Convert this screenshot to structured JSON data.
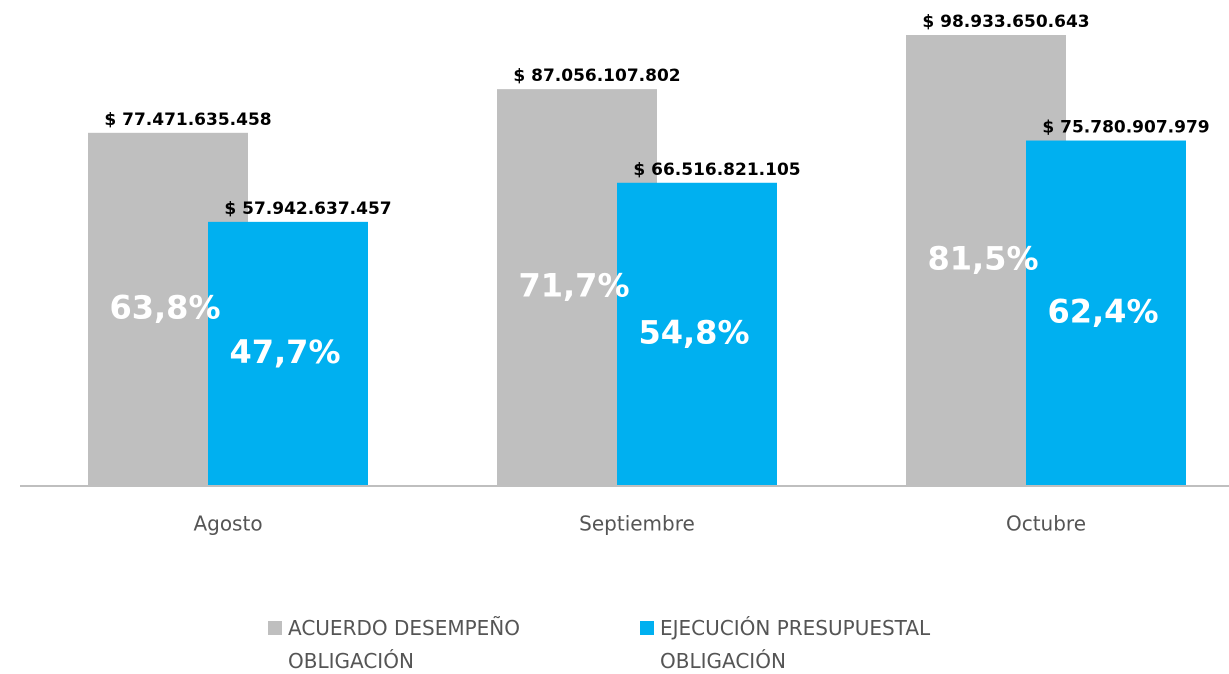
{
  "chart_data": {
    "type": "bar",
    "categories": [
      "Agosto",
      "Septiembre",
      "Octubre"
    ],
    "series": [
      {
        "name": "ACUERDO DESEMPEÑO OBLIGACIÓN",
        "color": "#bfbfbf",
        "values": [
          77471635458,
          87056107802,
          98933650643
        ],
        "value_labels": [
          "$ 77.471.635.458",
          "$ 87.056.107.802",
          "$ 98.933.650.643"
        ],
        "percentages": [
          63.8,
          71.7,
          81.5
        ],
        "percentage_labels": [
          "63,8%",
          "71,7%",
          "81,5%"
        ]
      },
      {
        "name": "EJECUCIÓN PRESUPUESTAL OBLIGACIÓN",
        "color": "#00b0f0",
        "values": [
          57942637457,
          66516821105,
          75780907979
        ],
        "value_labels": [
          "$ 57.942.637.457",
          "$ 66.516.821.105",
          "$ 75.780.907.979"
        ],
        "percentages": [
          47.7,
          54.8,
          62.4
        ],
        "percentage_labels": [
          "47,7%",
          "54,8%",
          "62,4%"
        ]
      }
    ],
    "legend": "bottom"
  }
}
